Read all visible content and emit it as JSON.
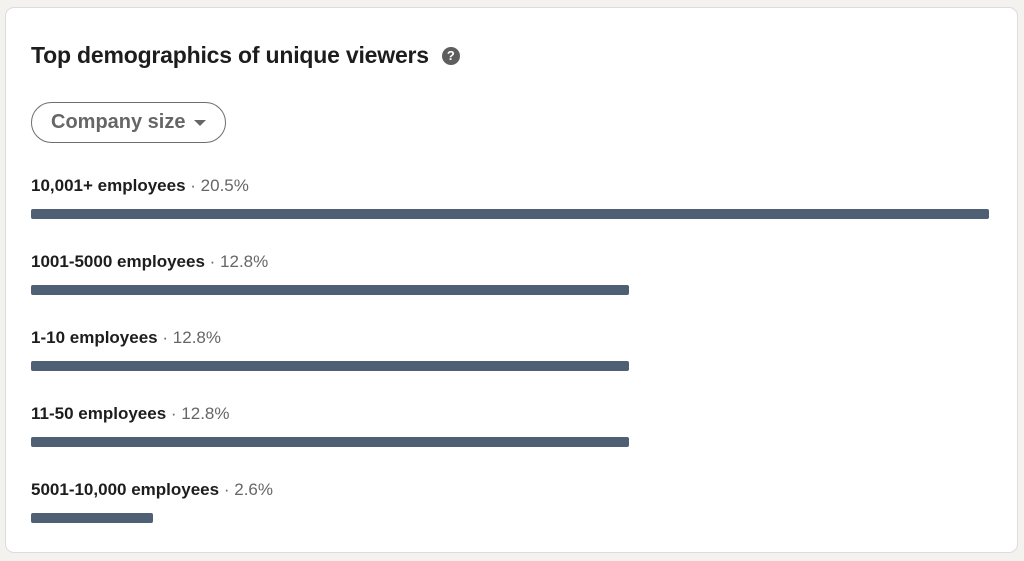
{
  "card": {
    "title": "Top demographics of unique viewers",
    "help_icon": "question-circle-icon"
  },
  "filter": {
    "selected": "Company size",
    "caret_icon": "chevron-down-icon"
  },
  "bar_color": "#4f5f74",
  "separator": "·",
  "rows": [
    {
      "name": "10,001+ employees",
      "percent": "20.5%",
      "value": 20.5
    },
    {
      "name": "1001-5000 employees",
      "percent": "12.8%",
      "value": 12.8
    },
    {
      "name": "1-10 employees",
      "percent": "12.8%",
      "value": 12.8
    },
    {
      "name": "11-50 employees",
      "percent": "12.8%",
      "value": 12.8
    },
    {
      "name": "5001-10,000 employees",
      "percent": "2.6%",
      "value": 2.6
    }
  ]
}
